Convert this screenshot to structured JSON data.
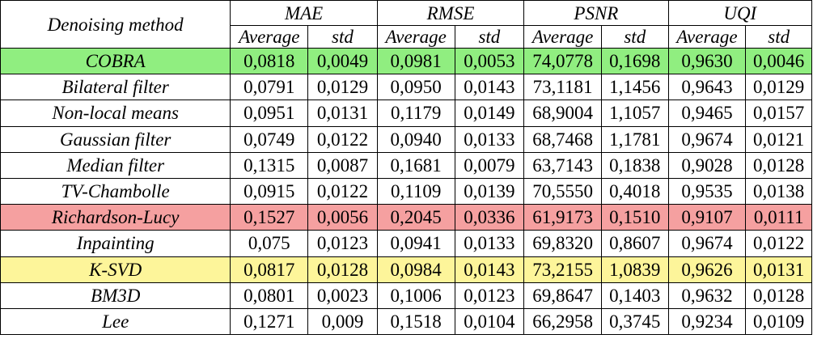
{
  "table": {
    "method_header": "Denoising method",
    "metrics": [
      "MAE",
      "RMSE",
      "PSNR",
      "UQI"
    ],
    "sub_headers": [
      "Average",
      "std"
    ],
    "rows": [
      {
        "method": "COBRA",
        "highlight": "#90ee80",
        "values": [
          "0,0818",
          "0,0049",
          "0,0981",
          "0,0053",
          "74,0778",
          "0,1698",
          "0,9630",
          "0,0046"
        ]
      },
      {
        "method": "Bilateral filter",
        "highlight": "",
        "values": [
          "0,0791",
          "0,0129",
          "0,0950",
          "0,0143",
          "73,1181",
          "1,1456",
          "0,9643",
          "0,0129"
        ]
      },
      {
        "method": "Non-local means",
        "highlight": "",
        "values": [
          "0,0951",
          "0,0131",
          "0,1179",
          "0,0149",
          "68,9004",
          "1,1057",
          "0,9465",
          "0,0157"
        ]
      },
      {
        "method": "Gaussian filter",
        "highlight": "",
        "values": [
          "0,0749",
          "0,0122",
          "0,0940",
          "0,0133",
          "68,7468",
          "1,1781",
          "0,9674",
          "0,0121"
        ]
      },
      {
        "method": "Median filter",
        "highlight": "",
        "values": [
          "0,1315",
          "0,0087",
          "0,1681",
          "0,0079",
          "63,7143",
          "0,1838",
          "0,9028",
          "0,0128"
        ]
      },
      {
        "method": "TV-Chambolle",
        "highlight": "",
        "values": [
          "0,0915",
          "0,0122",
          "0,1109",
          "0,0139",
          "70,5550",
          "0,4018",
          "0,9535",
          "0,0138"
        ]
      },
      {
        "method": "Richardson-Lucy",
        "highlight": "#f5a0a0",
        "values": [
          "0,1527",
          "0,0056",
          "0,2045",
          "0,0336",
          "61,9173",
          "0,1510",
          "0,9107",
          "0,0111"
        ]
      },
      {
        "method": "Inpainting",
        "highlight": "",
        "values": [
          "0,075",
          "0,0123",
          "0,0941",
          "0,0133",
          "69,8320",
          "0,8607",
          "0,9674",
          "0,0122"
        ]
      },
      {
        "method": "K-SVD",
        "highlight": "#fdf59a",
        "values": [
          "0,0817",
          "0,0128",
          "0,0984",
          "0,0143",
          "73,2155",
          "1,0839",
          "0,9626",
          "0,0131"
        ]
      },
      {
        "method": "BM3D",
        "highlight": "",
        "values": [
          "0,0801",
          "0,0023",
          "0,1006",
          "0,0123",
          "69,8647",
          "0,1403",
          "0,9632",
          "0,0128"
        ]
      },
      {
        "method": "Lee",
        "highlight": "",
        "values": [
          "0,1271",
          "0,009",
          "0,1518",
          "0,0104",
          "66,2958",
          "0,3745",
          "0,9234",
          "0,0109"
        ]
      }
    ]
  }
}
